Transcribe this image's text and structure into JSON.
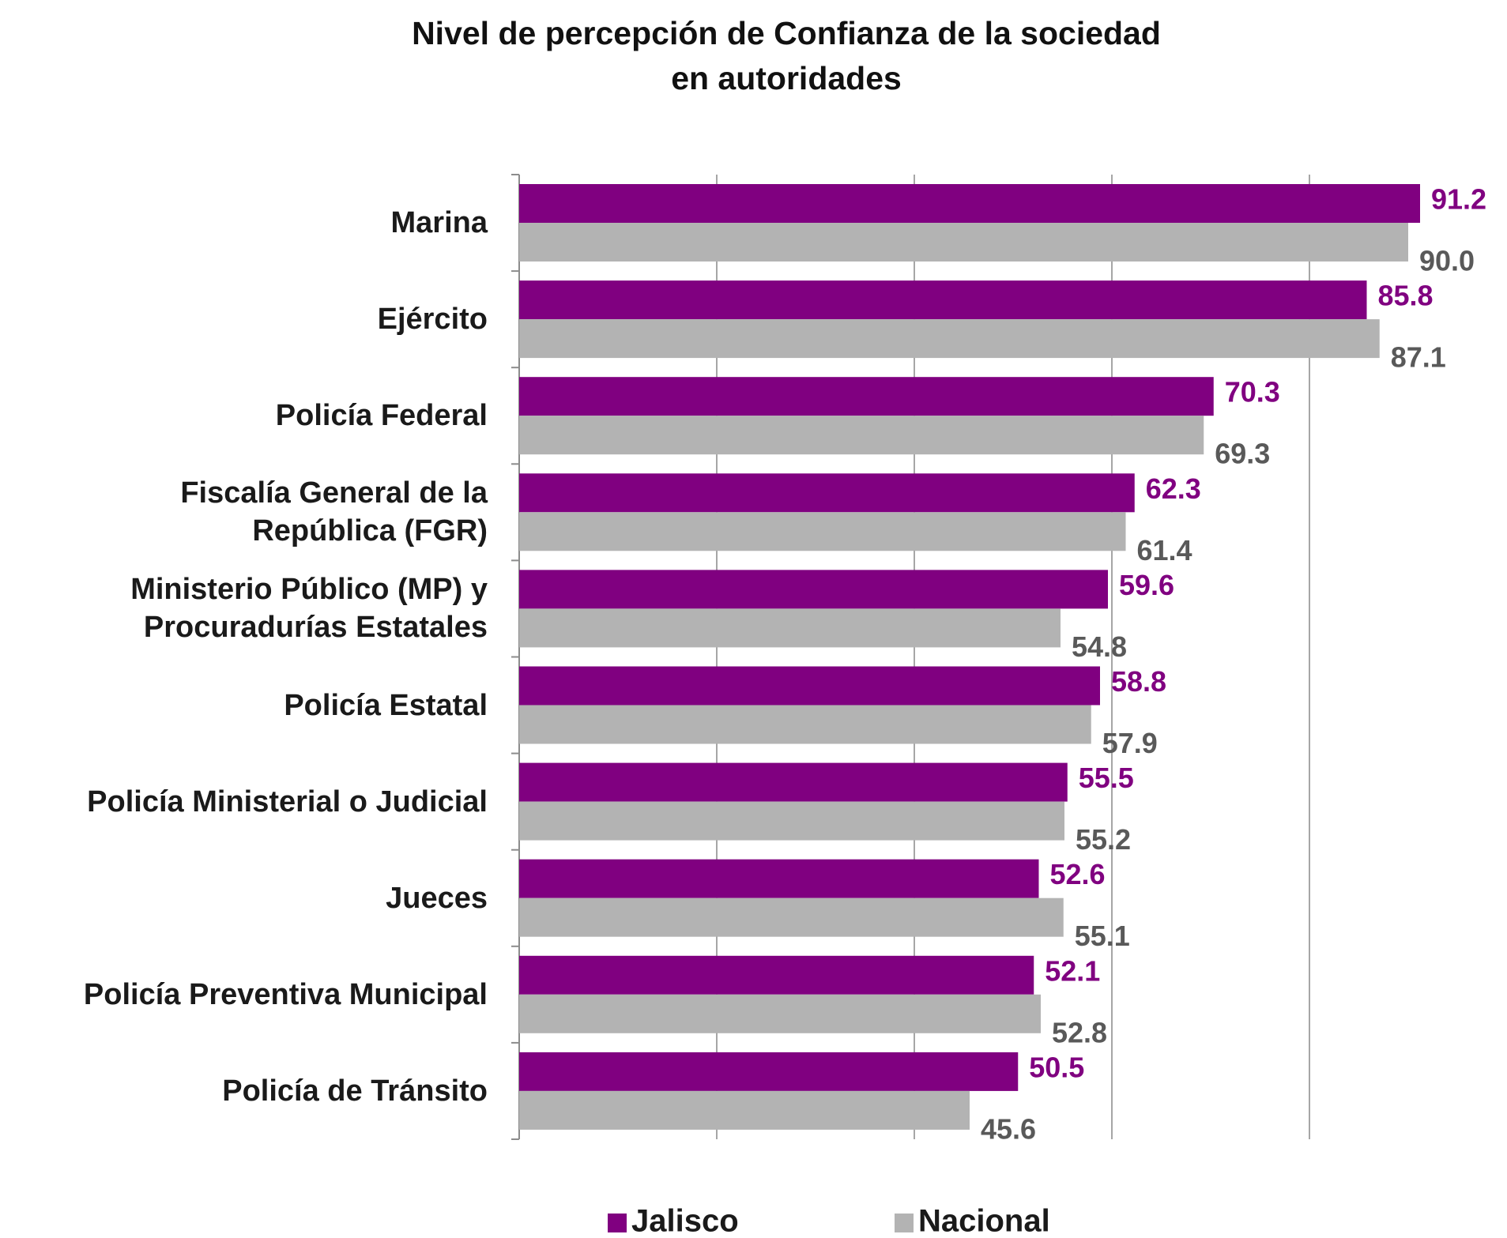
{
  "chart_data": {
    "type": "barh",
    "title": "Nivel de percepción  de Confianza de la sociedad\nen autoridades",
    "categories": [
      "Marina",
      "Ejército",
      "Policía Federal",
      "Fiscalía General de la\nRepública (FGR)",
      "Ministerio Público (MP) y\nProcuradurías Estatales",
      "Policía Estatal",
      "Policía Ministerial o Judicial",
      "Jueces",
      "Policía Preventiva Municipal",
      "Policía de Tránsito"
    ],
    "series": [
      {
        "name": "Jalisco",
        "color": "#800080",
        "label_color": "#800080",
        "values": [
          91.2,
          85.8,
          70.3,
          62.3,
          59.6,
          58.8,
          55.5,
          52.6,
          52.1,
          50.5
        ]
      },
      {
        "name": "Nacional",
        "color": "#b3b3b3",
        "label_color": "#595959",
        "values": [
          90.0,
          87.1,
          69.3,
          61.4,
          54.8,
          57.9,
          55.2,
          55.1,
          52.8,
          45.6
        ]
      }
    ],
    "value_labels": [
      [
        "91.2",
        "85.8",
        "70.3",
        "62.3",
        "59.6",
        "58.8",
        "55.5",
        "52.6",
        "52.1",
        "50.5"
      ],
      [
        "90.0",
        "87.1",
        "69.3",
        "61.4",
        "54.8",
        "57.9",
        "55.2",
        "55.1",
        "52.8",
        "45.6"
      ]
    ],
    "xlim": [
      0,
      100
    ],
    "xticks": [
      0,
      20,
      40,
      60,
      80
    ],
    "grid": true,
    "legend": "bottom"
  }
}
